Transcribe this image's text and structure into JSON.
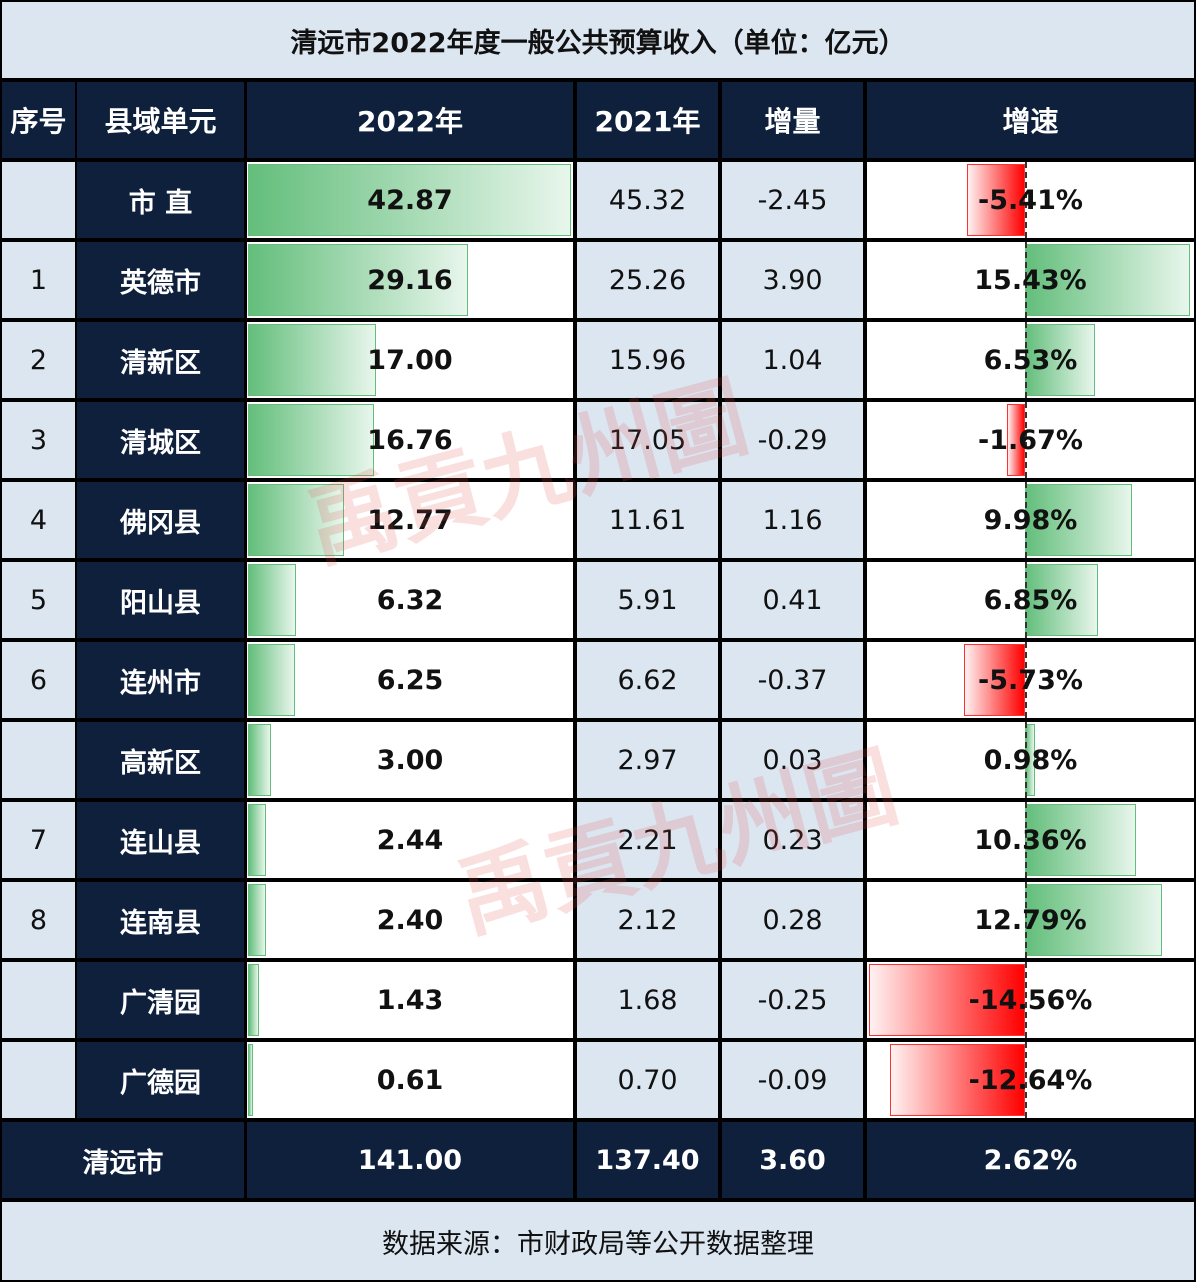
{
  "title": "清远市2022年度一般公共预算收入（单位：亿元）",
  "headers": [
    "序号",
    "县域单元",
    "2022年",
    "2021年",
    "增量",
    "增速"
  ],
  "rows": [
    {
      "seq": "",
      "name": "市 直",
      "y2022": "42.87",
      "y2021": "45.32",
      "delta": "-2.45",
      "growth": "-5.41%"
    },
    {
      "seq": "1",
      "name": "英德市",
      "y2022": "29.16",
      "y2021": "25.26",
      "delta": "3.90",
      "growth": "15.43%"
    },
    {
      "seq": "2",
      "name": "清新区",
      "y2022": "17.00",
      "y2021": "15.96",
      "delta": "1.04",
      "growth": "6.53%"
    },
    {
      "seq": "3",
      "name": "清城区",
      "y2022": "16.76",
      "y2021": "17.05",
      "delta": "-0.29",
      "growth": "-1.67%"
    },
    {
      "seq": "4",
      "name": "佛冈县",
      "y2022": "12.77",
      "y2021": "11.61",
      "delta": "1.16",
      "growth": "9.98%"
    },
    {
      "seq": "5",
      "name": "阳山县",
      "y2022": "6.32",
      "y2021": "5.91",
      "delta": "0.41",
      "growth": "6.85%"
    },
    {
      "seq": "6",
      "name": "连州市",
      "y2022": "6.25",
      "y2021": "6.62",
      "delta": "-0.37",
      "growth": "-5.73%"
    },
    {
      "seq": "",
      "name": "高新区",
      "y2022": "3.00",
      "y2021": "2.97",
      "delta": "0.03",
      "growth": "0.98%"
    },
    {
      "seq": "7",
      "name": "连山县",
      "y2022": "2.44",
      "y2021": "2.21",
      "delta": "0.23",
      "growth": "10.36%"
    },
    {
      "seq": "8",
      "name": "连南县",
      "y2022": "2.40",
      "y2021": "2.12",
      "delta": "0.28",
      "growth": "12.79%"
    },
    {
      "seq": "",
      "name": "广清园",
      "y2022": "1.43",
      "y2021": "1.68",
      "delta": "-0.25",
      "growth": "-14.56%"
    },
    {
      "seq": "",
      "name": "广德园",
      "y2022": "0.61",
      "y2021": "0.70",
      "delta": "-0.09",
      "growth": "-12.64%"
    }
  ],
  "total": {
    "name": "清远市",
    "y2022": "141.00",
    "y2021": "137.40",
    "delta": "3.60",
    "growth": "2.62%"
  },
  "footer": "数据来源：市财政局等公开数据整理",
  "watermark": "禹貢九州圖",
  "colors": {
    "navy": "#0f203d",
    "light_blue": "#dce6f1",
    "positive_bar": "#63be7b",
    "negative_bar": "#ff0000"
  },
  "chart_data": {
    "type": "table",
    "columns": [
      "序号",
      "县域单元",
      "2022年",
      "2021年",
      "增量",
      "增速"
    ],
    "data_bars": [
      "2022年",
      "增速"
    ],
    "categories": [
      "市 直",
      "英德市",
      "清新区",
      "清城区",
      "佛冈县",
      "阳山县",
      "连州市",
      "高新区",
      "连山县",
      "连南县",
      "广清园",
      "广德园"
    ],
    "series": [
      {
        "name": "2022年",
        "values": [
          42.87,
          29.16,
          17.0,
          16.76,
          12.77,
          6.32,
          6.25,
          3.0,
          2.44,
          2.4,
          1.43,
          0.61
        ]
      },
      {
        "name": "2021年",
        "values": [
          45.32,
          25.26,
          15.96,
          17.05,
          11.61,
          5.91,
          6.62,
          2.97,
          2.21,
          2.12,
          1.68,
          0.7
        ]
      },
      {
        "name": "增量",
        "values": [
          -2.45,
          3.9,
          1.04,
          -0.29,
          1.16,
          0.41,
          -0.37,
          0.03,
          0.23,
          0.28,
          -0.25,
          -0.09
        ]
      },
      {
        "name": "增速",
        "values": [
          -5.41,
          15.43,
          6.53,
          -1.67,
          9.98,
          6.85,
          -5.73,
          0.98,
          10.36,
          12.79,
          -14.56,
          -12.64
        ]
      }
    ]
  }
}
